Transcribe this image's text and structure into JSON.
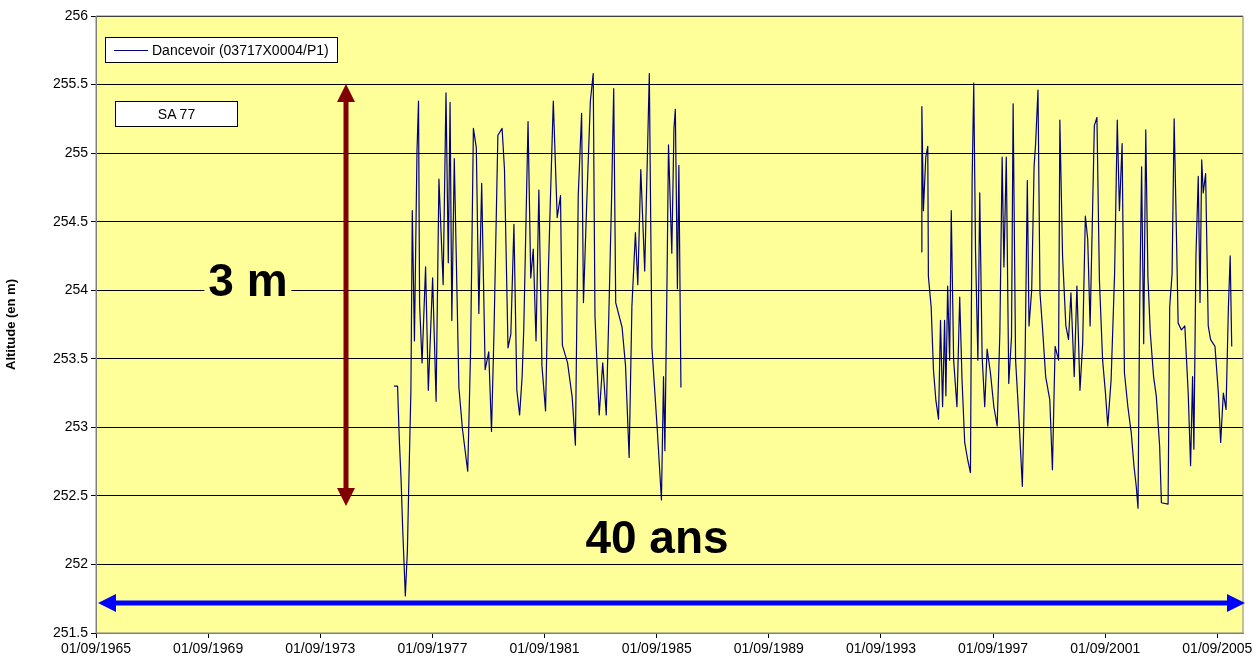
{
  "chart_data": {
    "type": "line",
    "ylabel": "Altitude (en m)",
    "legend": "top left",
    "grid": "y",
    "marker": "none",
    "line_style": "solid",
    "annotations": [
      "SA 77",
      "3 m",
      "40 ans"
    ],
    "xlim": [
      "1965-09-01",
      "2006-08-01"
    ],
    "xticks": [
      {
        "value": "1965-09-01",
        "label": "01/09/1965"
      },
      {
        "value": "1969-09-01",
        "label": "01/09/1969"
      },
      {
        "value": "1973-09-01",
        "label": "01/09/1973"
      },
      {
        "value": "1977-09-01",
        "label": "01/09/1977"
      },
      {
        "value": "1981-09-01",
        "label": "01/09/1981"
      },
      {
        "value": "1985-09-01",
        "label": "01/09/1985"
      },
      {
        "value": "1989-09-01",
        "label": "01/09/1989"
      },
      {
        "value": "1993-09-01",
        "label": "01/09/1993"
      },
      {
        "value": "1997-09-01",
        "label": "01/09/1997"
      },
      {
        "value": "2001-09-01",
        "label": "01/09/2001"
      },
      {
        "value": "2005-09-01",
        "label": "01/09/2005"
      }
    ],
    "ylim": [
      251.5,
      256
    ],
    "yticks": [
      251.5,
      252,
      252.5,
      253,
      253.5,
      254,
      254.5,
      255,
      255.5,
      256
    ],
    "x": [
      "1976-04-18",
      "1976-06-04",
      "1976-06-26",
      "1976-07-19",
      "1976-08-11",
      "1976-09-04",
      "1976-09-13",
      "1976-10-10",
      "1976-10-28",
      "1976-11-25",
      "1976-12-13",
      "1977-01-10",
      "1977-02-12",
      "1977-03-04",
      "1977-03-18",
      "1977-04-19",
      "1977-06-04",
      "1977-07-10",
      "1977-09-04",
      "1977-10-19",
      "1977-11-25",
      "1978-01-19",
      "1978-02-25",
      "1978-03-27",
      "1978-04-19",
      "1978-05-12",
      "1978-06-13",
      "1978-08-12",
      "1978-09-27",
      "1978-12-05",
      "1979-01-11",
      "1979-02-17",
      "1979-03-27",
      "1979-04-29",
      "1979-06-05",
      "1979-07-20",
      "1979-09-05",
      "1979-10-11",
      "1979-11-13",
      "1980-01-02",
      "1980-02-26",
      "1980-03-28",
      "1980-05-13",
      "1980-06-19",
      "1980-07-29",
      "1980-09-05",
      "1980-10-11",
      "1980-11-13",
      "1980-12-05",
      "1981-01-29",
      "1981-03-05",
      "1981-04-07",
      "1981-05-13",
      "1981-06-19",
      "1981-07-29",
      "1981-09-14",
      "1981-10-20",
      "1981-11-13",
      "1981-12-24",
      "1982-02-13",
      "1982-03-28",
      "1982-04-21",
      "1982-06-28",
      "1982-08-27",
      "1982-10-08",
      "1982-11-14",
      "1982-12-28",
      "1983-01-21",
      "1983-03-06",
      "1983-04-21",
      "1983-05-28",
      "1983-06-20",
      "1983-08-14",
      "1983-09-29",
      "1983-11-14",
      "1983-12-20",
      "1984-01-22",
      "1984-02-19",
      "1984-03-16",
      "1984-06-07",
      "1984-07-22",
      "1984-09-07",
      "1984-10-13",
      "1984-11-28",
      "1984-12-29",
      "1985-02-06",
      "1985-03-29",
      "1985-05-28",
      "1985-07-01",
      "1985-09-08",
      "1985-11-02",
      "1985-11-29",
      "1985-12-17",
      "1986-01-14",
      "1986-02-02",
      "1986-03-17",
      "1986-04-14",
      "1986-05-02",
      "1986-05-29",
      "1986-06-17",
      "1986-07-14",
      "1990-01-01",
      "1995-02-08",
      "1995-02-16",
      "1995-03-08",
      "1995-04-08",
      "1995-05-04",
      "1995-05-12",
      "1995-06-17",
      "1995-07-17",
      "1995-08-17",
      "1995-09-21",
      "1995-10-17",
      "1995-11-13",
      "1995-12-09",
      "1995-12-26",
      "1996-01-18",
      "1996-02-13",
      "1996-03-05",
      "1996-04-05",
      "1996-05-18",
      "1996-06-23",
      "1996-07-23",
      "1996-08-27",
      "1996-10-06",
      "1996-11-10",
      "1996-12-02",
      "1996-12-23",
      "1997-01-15",
      "1997-02-15",
      "1997-03-11",
      "1997-04-11",
      "1997-05-15",
      "1997-06-15",
      "1997-07-28",
      "1997-09-11",
      "1997-10-24",
      "1997-11-28",
      "1997-12-28",
      "1998-01-20",
      "1998-02-20",
      "1998-03-24",
      "1998-04-29",
      "1998-05-20",
      "1998-06-21",
      "1998-08-04",
      "1998-09-17",
      "1998-10-21",
      "1998-11-21",
      "1998-12-13",
      "1999-01-17",
      "1999-02-17",
      "1999-03-09",
      "1999-04-09",
      "1999-05-05",
      "1999-06-05",
      "1999-07-18",
      "1999-09-10",
      "1999-10-14",
      "1999-11-18",
      "2000-01-02",
      "2000-01-19",
      "2000-02-23",
      "2000-04-06",
      "2000-05-11",
      "2000-06-11",
      "2000-07-24",
      "2000-08-28",
      "2000-10-07",
      "2000-11-11",
      "2000-12-16",
      "2001-01-16",
      "2001-02-16",
      "2001-03-20",
      "2001-04-12",
      "2001-05-16",
      "2001-06-17",
      "2001-07-29",
      "2001-09-04",
      "2001-10-04",
      "2001-11-17",
      "2002-01-01",
      "2002-02-05",
      "2002-03-05",
      "2002-04-09",
      "2002-05-09",
      "2002-06-23",
      "2002-08-06",
      "2002-09-10",
      "2002-10-10",
      "2002-11-02",
      "2002-11-23",
      "2002-12-19",
      "2003-01-15",
      "2003-02-11",
      "2003-03-11",
      "2003-04-11",
      "2003-05-24",
      "2003-06-28",
      "2003-08-11",
      "2003-09-03",
      "2003-11-29",
      "2003-12-20",
      "2004-01-20",
      "2004-02-16",
      "2004-03-08",
      "2004-04-08",
      "2004-05-21",
      "2004-07-04",
      "2004-08-17",
      "2004-09-17",
      "2004-10-13",
      "2004-10-30",
      "2004-11-26",
      "2004-12-26",
      "2005-01-18",
      "2005-02-09",
      "2005-03-01",
      "2005-04-01",
      "2005-05-05",
      "2005-06-05",
      "2005-08-01",
      "2005-09-14",
      "2005-10-14",
      "2005-11-18",
      "2005-12-23",
      "2006-01-23",
      "2006-02-15",
      "2006-03-07"
    ],
    "series": [
      {
        "name": "Dancevoir (03717X0004/P1)",
        "color": "#000080",
        "values": [
          253.3,
          253.3,
          252.92,
          252.63,
          252.24,
          251.9,
          251.77,
          252.1,
          252.58,
          253.27,
          254.58,
          253.63,
          255.01,
          255.38,
          253.9,
          253.47,
          254.17,
          253.27,
          254.09,
          253.19,
          254.81,
          254.04,
          255.44,
          254.2,
          255.37,
          253.78,
          254.96,
          253.29,
          252.99,
          252.68,
          253.55,
          255.18,
          255.04,
          253.83,
          254.78,
          253.42,
          253.55,
          252.97,
          253.71,
          255.13,
          255.18,
          254.88,
          253.58,
          253.68,
          254.48,
          253.27,
          253.09,
          253.37,
          253.73,
          255.23,
          254.09,
          254.3,
          253.63,
          254.73,
          253.45,
          253.12,
          254.12,
          254.6,
          255.38,
          254.53,
          254.69,
          253.6,
          253.47,
          253.22,
          252.87,
          254.69,
          255.29,
          253.91,
          254.66,
          255.38,
          255.58,
          253.81,
          253.09,
          253.47,
          253.09,
          253.88,
          254.66,
          255.47,
          253.91,
          253.73,
          253.45,
          252.78,
          253.88,
          254.42,
          254.04,
          254.88,
          254.14,
          255.58,
          253.58,
          252.99,
          252.47,
          253.37,
          252.83,
          254.09,
          255.06,
          254.27,
          255.18,
          255.32,
          254.01,
          254.91,
          253.29,
          null,
          254.28,
          255.34,
          254.58,
          254.97,
          255.05,
          254.1,
          253.88,
          253.42,
          253.2,
          253.06,
          253.78,
          253.15,
          253.78,
          253.23,
          254.03,
          253.49,
          254.58,
          253.49,
          253.15,
          253.95,
          253.35,
          252.89,
          252.76,
          252.67,
          254.8,
          255.51,
          254.29,
          253.49,
          254.71,
          253.52,
          253.15,
          253.57,
          253.4,
          253.15,
          253.01,
          253.69,
          254.97,
          254.17,
          254.97,
          253.32,
          253.66,
          255.36,
          253.49,
          253.06,
          252.57,
          253.42,
          254.8,
          253.74,
          254.0,
          254.9,
          255.07,
          255.46,
          253.98,
          253.74,
          253.37,
          253.2,
          252.69,
          253.59,
          253.49,
          255.24,
          254.25,
          253.74,
          253.64,
          253.98,
          253.37,
          254.03,
          253.27,
          253.61,
          254.54,
          254.37,
          253.74,
          254.58,
          255.2,
          255.26,
          254.08,
          253.49,
          253.25,
          253.01,
          253.35,
          254.12,
          255.24,
          254.58,
          255.07,
          253.4,
          253.15,
          252.96,
          252.72,
          252.57,
          252.41,
          253.83,
          254.9,
          253.61,
          255.17,
          254.1,
          253.69,
          253.37,
          253.23,
          252.86,
          252.45,
          252.44,
          253.88,
          254.12,
          255.25,
          254.66,
          253.76,
          253.71,
          253.74,
          253.25,
          252.72,
          253.37,
          252.84,
          254.25,
          254.83,
          253.91,
          254.95,
          254.71,
          254.85,
          253.74,
          253.64,
          253.59,
          253.25,
          252.89,
          253.25,
          253.13,
          253.88,
          254.25,
          253.59
        ]
      }
    ]
  }
}
